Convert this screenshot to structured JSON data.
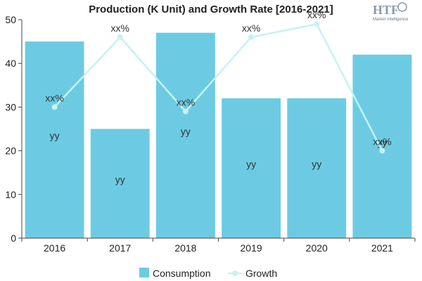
{
  "chart_data": {
    "type": "bar",
    "title": "Production (K Unit) and Growth Rate [2016-2021]",
    "categories": [
      "2016",
      "2017",
      "2018",
      "2019",
      "2020",
      "2021"
    ],
    "series": [
      {
        "name": "Consumption",
        "type": "bar",
        "values": [
          45,
          25,
          47,
          32,
          32,
          42
        ],
        "data_labels": [
          "yy",
          "yy",
          "yy",
          "yy",
          "yy",
          "yy"
        ],
        "color": "#6ccbe3"
      },
      {
        "name": "Growth",
        "type": "line",
        "values": [
          30,
          46,
          29,
          46,
          49,
          20
        ],
        "data_labels": [
          "xx%",
          "xx%",
          "xx%",
          "xx%",
          "xx%",
          "xx%"
        ],
        "color": "#c6f2f2"
      }
    ],
    "ylim": [
      0,
      50
    ],
    "yticks": [
      0,
      10,
      20,
      30,
      40,
      50
    ],
    "grid": false,
    "legend_position": "bottom"
  },
  "logo": {
    "text": "HTF",
    "subtext": "Market Intelligence"
  }
}
